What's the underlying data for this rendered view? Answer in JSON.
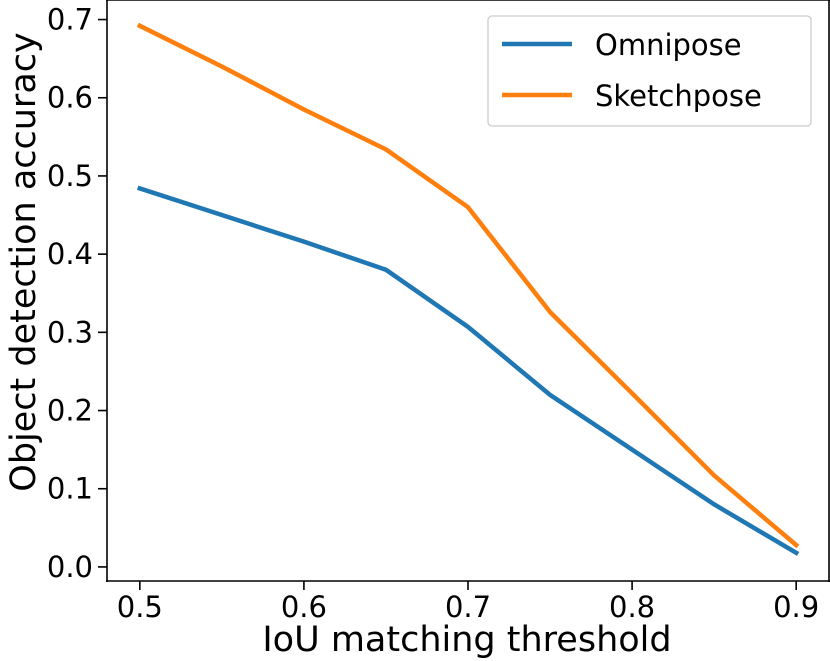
{
  "chart_data": {
    "type": "line",
    "title": "",
    "xlabel": "IoU matching threshold",
    "ylabel": "Object detection accuracy",
    "xlim": [
      0.48,
      0.92
    ],
    "ylim": [
      -0.018,
      0.725
    ],
    "xticks": [
      0.5,
      0.6,
      0.7,
      0.8,
      0.9
    ],
    "xtick_labels": [
      "0.5",
      "0.6",
      "0.7",
      "0.8",
      "0.9"
    ],
    "yticks": [
      0.0,
      0.1,
      0.2,
      0.3,
      0.4,
      0.5,
      0.6,
      0.7
    ],
    "ytick_labels": [
      "0.0",
      "0.1",
      "0.2",
      "0.3",
      "0.4",
      "0.5",
      "0.6",
      "0.7"
    ],
    "grid": false,
    "legend_position": "top-right",
    "x": [
      0.5,
      0.55,
      0.6,
      0.65,
      0.7,
      0.75,
      0.8,
      0.85,
      0.9
    ],
    "series": [
      {
        "name": "Omnipose",
        "color": "#1f77b4",
        "values": [
          0.484,
          0.45,
          0.416,
          0.38,
          0.307,
          0.22,
          0.15,
          0.08,
          0.018
        ]
      },
      {
        "name": "Sketchpose",
        "color": "#ff7f0e",
        "values": [
          0.692,
          0.64,
          0.585,
          0.534,
          0.46,
          0.326,
          0.222,
          0.117,
          0.028
        ]
      }
    ]
  }
}
